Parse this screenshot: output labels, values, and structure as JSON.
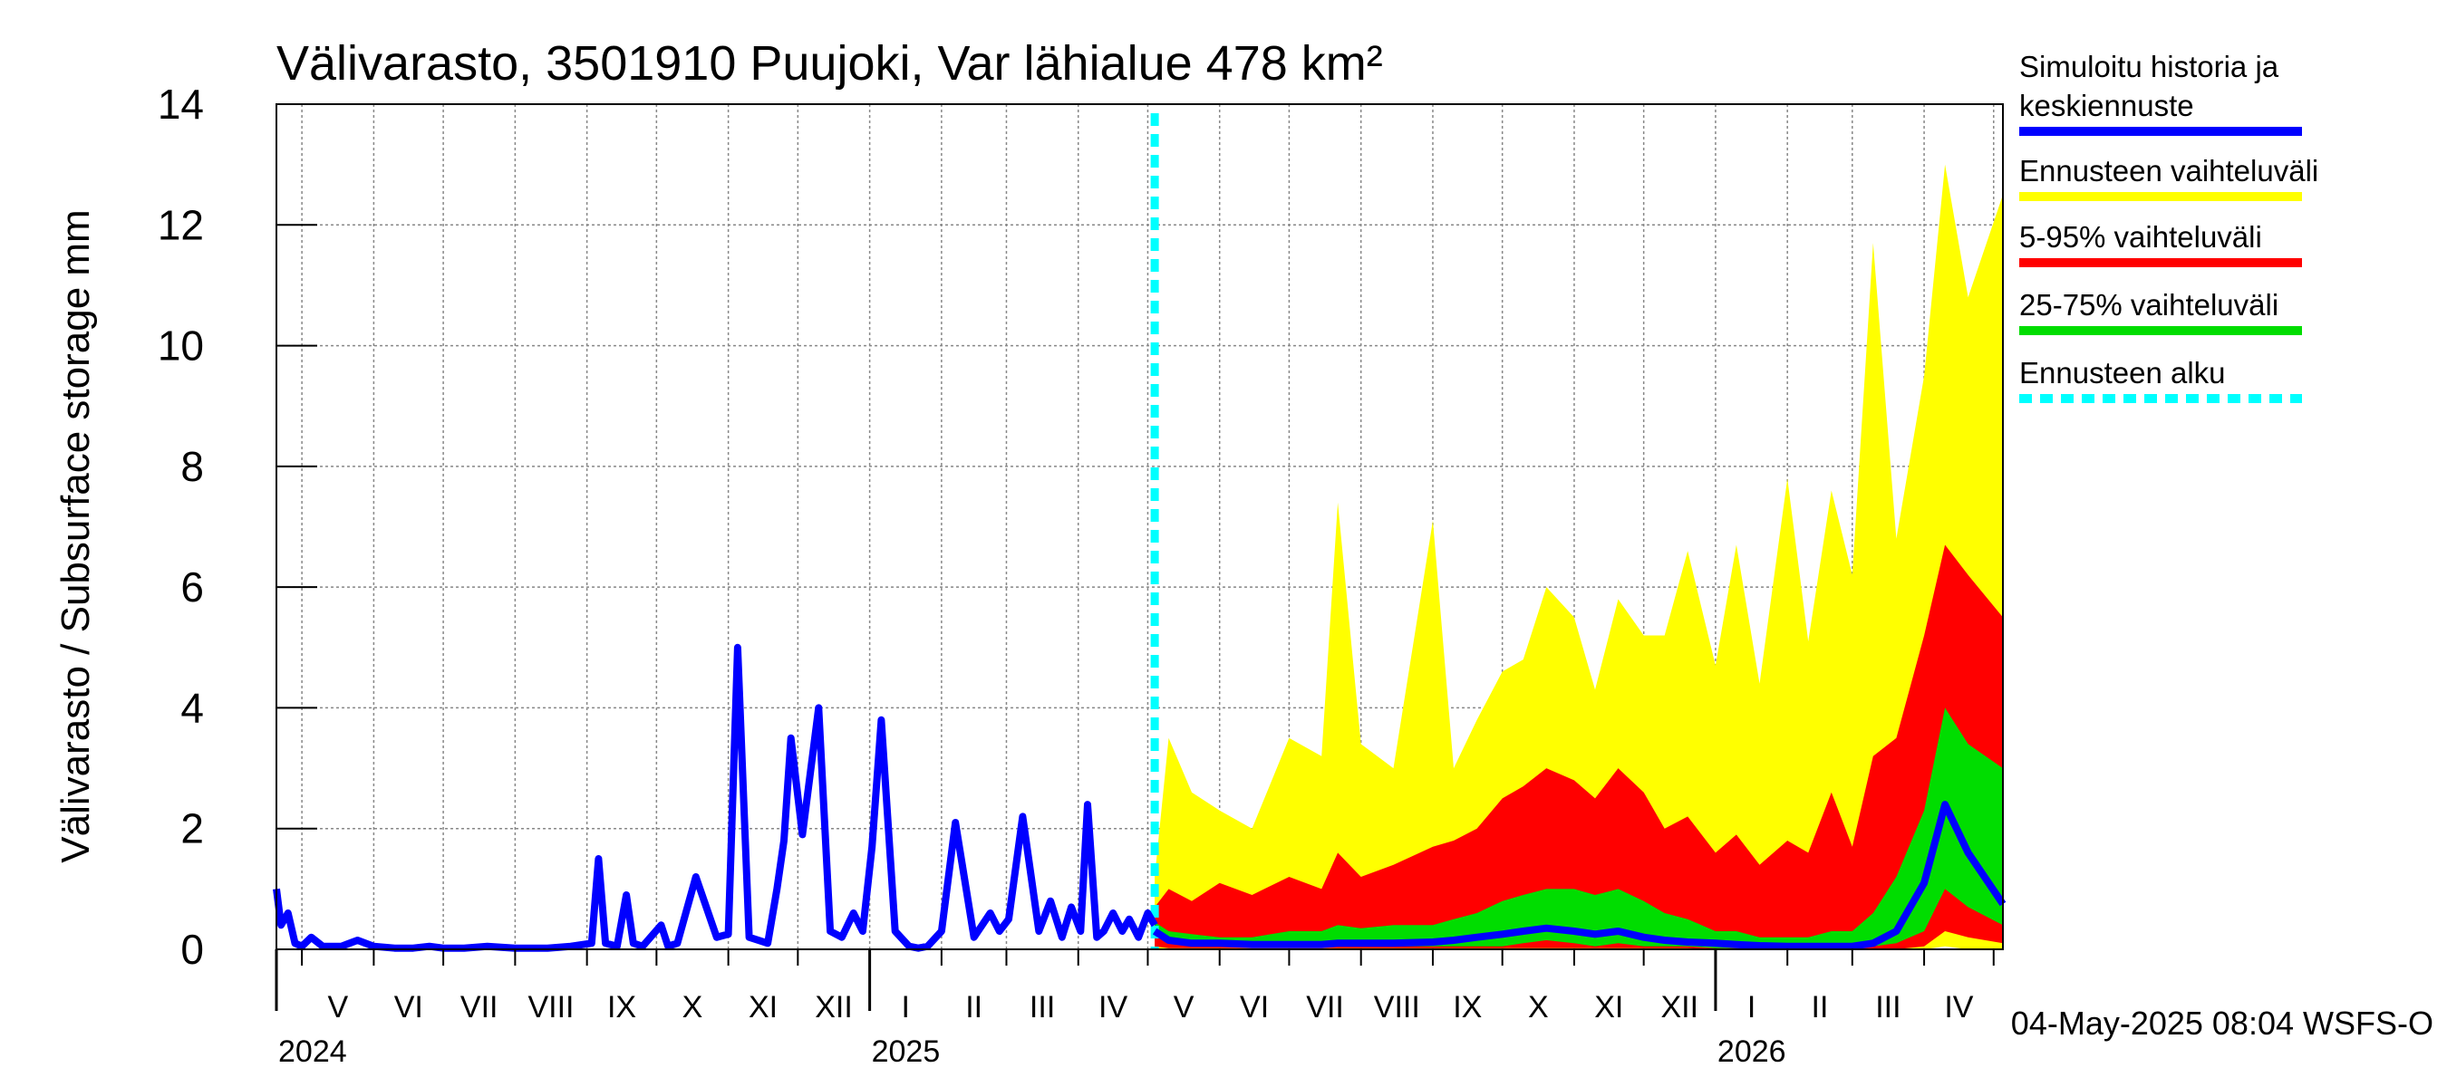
{
  "chart_data": {
    "type": "area",
    "title": "Välivarasto, 3501910 Puujoki, Var lähialue 478 km²",
    "ylabel": "Välivarasto / Subsurface storage  mm",
    "xlabel": "",
    "ylim": [
      0,
      14
    ],
    "yticks": [
      0,
      2,
      4,
      6,
      8,
      10,
      12,
      14
    ],
    "grid": true,
    "legend_position": "right",
    "x_start": "2024-04-20",
    "x_end": "2026-05-05",
    "forecast_start": "2025-05-04",
    "months": [
      "V",
      "VI",
      "VII",
      "VIII",
      "IX",
      "X",
      "XI",
      "XII",
      "I",
      "II",
      "III",
      "IV",
      "V",
      "VI",
      "VII",
      "VIII",
      "IX",
      "X",
      "XI",
      "XII",
      "I",
      "II",
      "III",
      "IV"
    ],
    "years": [
      "2024",
      "2025",
      "2026"
    ],
    "legend": [
      {
        "label": "Simuloitu historia ja",
        "label2": "keskiennuste",
        "color": "#0000ff",
        "style": "solid"
      },
      {
        "label": "Ennusteen vaihteluväli",
        "color": "#ffff00",
        "style": "solid"
      },
      {
        "label": "5-95% vaihteluväli",
        "color": "#ff0000",
        "style": "solid"
      },
      {
        "label": "25-75% vaihteluväli",
        "color": "#00dd00",
        "style": "solid"
      },
      {
        "label": "Ennusteen alku",
        "color": "#00ffff",
        "style": "dashed"
      }
    ],
    "colors": {
      "history": "#0000ff",
      "range_full": "#ffff00",
      "range_5_95": "#ff0000",
      "range_25_75": "#00dd00",
      "forecast_start": "#00ffff"
    },
    "history": {
      "x": [
        "2024-04-20",
        "2024-04-22",
        "2024-04-25",
        "2024-04-28",
        "2024-05-01",
        "2024-05-05",
        "2024-05-10",
        "2024-05-18",
        "2024-05-25",
        "2024-06-01",
        "2024-06-10",
        "2024-06-18",
        "2024-06-25",
        "2024-07-01",
        "2024-07-10",
        "2024-07-20",
        "2024-08-01",
        "2024-08-15",
        "2024-08-25",
        "2024-09-03",
        "2024-09-06",
        "2024-09-09",
        "2024-09-14",
        "2024-09-18",
        "2024-09-21",
        "2024-09-25",
        "2024-10-03",
        "2024-10-06",
        "2024-10-10",
        "2024-10-18",
        "2024-10-27",
        "2024-11-01",
        "2024-11-05",
        "2024-11-10",
        "2024-11-18",
        "2024-11-22",
        "2024-11-25",
        "2024-11-28",
        "2024-12-03",
        "2024-12-10",
        "2024-12-15",
        "2024-12-20",
        "2024-12-25",
        "2024-12-29",
        "2025-01-02",
        "2025-01-06",
        "2025-01-12",
        "2025-01-18",
        "2025-01-22",
        "2025-01-26",
        "2025-02-01",
        "2025-02-07",
        "2025-02-15",
        "2025-02-22",
        "2025-02-26",
        "2025-03-02",
        "2025-03-08",
        "2025-03-15",
        "2025-03-20",
        "2025-03-25",
        "2025-03-29",
        "2025-04-02",
        "2025-04-05",
        "2025-04-09",
        "2025-04-12",
        "2025-04-16",
        "2025-04-20",
        "2025-04-23",
        "2025-04-27",
        "2025-05-01",
        "2025-05-04"
      ],
      "values": [
        1.0,
        0.4,
        0.6,
        0.1,
        0.05,
        0.2,
        0.05,
        0.05,
        0.15,
        0.05,
        0.02,
        0.02,
        0.05,
        0.02,
        0.02,
        0.05,
        0.02,
        0.02,
        0.05,
        0.1,
        1.5,
        0.1,
        0.05,
        0.9,
        0.1,
        0.05,
        0.4,
        0.05,
        0.1,
        1.2,
        0.2,
        0.25,
        5.0,
        0.2,
        0.1,
        1.0,
        1.8,
        3.5,
        1.9,
        4.0,
        0.3,
        0.2,
        0.6,
        0.3,
        1.7,
        3.8,
        0.3,
        0.05,
        0.02,
        0.05,
        0.3,
        2.1,
        0.2,
        0.6,
        0.3,
        0.5,
        2.2,
        0.3,
        0.8,
        0.2,
        0.7,
        0.3,
        2.4,
        0.2,
        0.3,
        0.6,
        0.3,
        0.5,
        0.2,
        0.6,
        0.4
      ]
    },
    "forecast": {
      "x": [
        "2025-05-04",
        "2025-05-10",
        "2025-05-20",
        "2025-06-01",
        "2025-06-15",
        "2025-07-01",
        "2025-07-15",
        "2025-07-22",
        "2025-08-01",
        "2025-08-15",
        "2025-09-01",
        "2025-09-10",
        "2025-09-20",
        "2025-10-01",
        "2025-10-10",
        "2025-10-20",
        "2025-11-01",
        "2025-11-10",
        "2025-11-20",
        "2025-12-01",
        "2025-12-10",
        "2025-12-20",
        "2026-01-01",
        "2026-01-10",
        "2026-01-20",
        "2026-02-01",
        "2026-02-10",
        "2026-02-20",
        "2026-03-01",
        "2026-03-10",
        "2026-03-20",
        "2026-04-01",
        "2026-04-10",
        "2026-04-20",
        "2026-05-05"
      ],
      "max": [
        1.2,
        3.5,
        2.6,
        2.3,
        2.0,
        3.5,
        3.2,
        7.4,
        3.4,
        3.0,
        7.1,
        3.0,
        3.8,
        4.6,
        4.8,
        6.0,
        5.5,
        4.3,
        5.8,
        5.2,
        5.2,
        6.6,
        4.7,
        6.7,
        4.4,
        7.8,
        5.1,
        7.6,
        6.2,
        11.7,
        6.8,
        9.5,
        13.0,
        10.8,
        12.5
      ],
      "p95": [
        0.7,
        1.0,
        0.8,
        1.1,
        0.9,
        1.2,
        1.0,
        1.6,
        1.2,
        1.4,
        1.7,
        1.8,
        2.0,
        2.5,
        2.7,
        3.0,
        2.8,
        2.5,
        3.0,
        2.6,
        2.0,
        2.2,
        1.6,
        1.9,
        1.4,
        1.8,
        1.6,
        2.6,
        1.7,
        3.2,
        3.5,
        5.2,
        6.7,
        6.2,
        5.5
      ],
      "p75": [
        0.45,
        0.3,
        0.25,
        0.2,
        0.2,
        0.3,
        0.3,
        0.4,
        0.35,
        0.4,
        0.4,
        0.5,
        0.6,
        0.8,
        0.9,
        1.0,
        1.0,
        0.9,
        1.0,
        0.8,
        0.6,
        0.5,
        0.3,
        0.3,
        0.2,
        0.2,
        0.2,
        0.3,
        0.3,
        0.6,
        1.2,
        2.3,
        4.0,
        3.4,
        3.0
      ],
      "p25": [
        0.25,
        0.1,
        0.05,
        0.05,
        0.05,
        0.05,
        0.05,
        0.05,
        0.05,
        0.05,
        0.05,
        0.05,
        0.05,
        0.05,
        0.1,
        0.15,
        0.1,
        0.05,
        0.1,
        0.05,
        0.05,
        0.05,
        0.02,
        0.02,
        0.02,
        0.02,
        0.02,
        0.02,
        0.02,
        0.05,
        0.1,
        0.3,
        1.0,
        0.7,
        0.4
      ],
      "p5": [
        0.05,
        0.02,
        0.02,
        0.02,
        0.02,
        0.02,
        0.02,
        0.02,
        0.02,
        0.02,
        0.02,
        0.02,
        0.02,
        0.02,
        0.02,
        0.02,
        0.02,
        0.02,
        0.02,
        0.02,
        0.02,
        0.02,
        0.0,
        0.0,
        0.0,
        0.0,
        0.0,
        0.0,
        0.0,
        0.0,
        0.0,
        0.05,
        0.3,
        0.2,
        0.1
      ],
      "min": [
        0.02,
        0.0,
        0.0,
        0.0,
        0.0,
        0.0,
        0.0,
        0.0,
        0.0,
        0.0,
        0.0,
        0.0,
        0.0,
        0.0,
        0.0,
        0.0,
        0.0,
        0.0,
        0.0,
        0.0,
        0.0,
        0.0,
        0.0,
        0.0,
        0.0,
        0.0,
        0.0,
        0.0,
        0.0,
        0.0,
        0.0,
        0.0,
        0.05,
        0.0,
        0.0
      ],
      "mean": [
        0.3,
        0.15,
        0.1,
        0.1,
        0.08,
        0.08,
        0.08,
        0.1,
        0.1,
        0.1,
        0.12,
        0.15,
        0.2,
        0.25,
        0.3,
        0.35,
        0.3,
        0.25,
        0.3,
        0.2,
        0.15,
        0.12,
        0.1,
        0.08,
        0.06,
        0.05,
        0.05,
        0.05,
        0.05,
        0.1,
        0.3,
        1.1,
        2.4,
        1.6,
        0.75
      ]
    },
    "footer": "04-May-2025 08:04 WSFS-O"
  }
}
